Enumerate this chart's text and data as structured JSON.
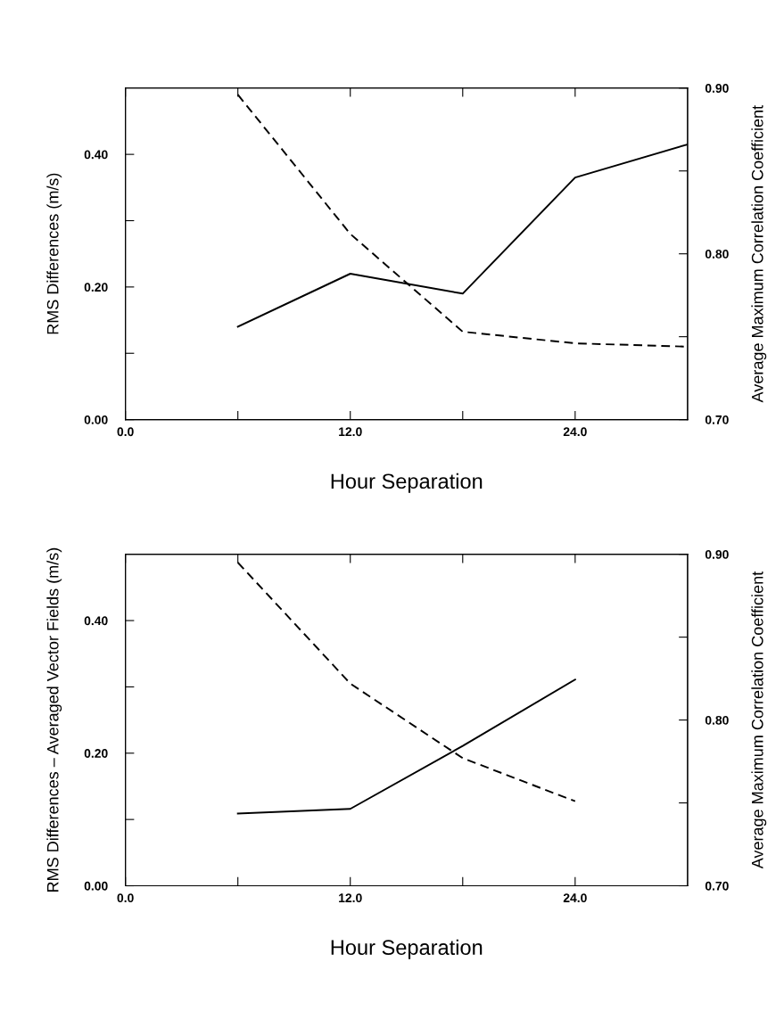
{
  "chart_data": [
    {
      "type": "line",
      "xlabel": "Hour Separation",
      "ylabel": "RMS Differences (m/s)",
      "y2label": "Average Maximum Correlation Coefficient",
      "x": [
        6,
        12,
        18,
        24,
        30
      ],
      "series": [
        {
          "color": "#000000",
          "line_style": "solid",
          "values": [
            0.14,
            0.22,
            0.19,
            0.365,
            0.415
          ]
        },
        {
          "color": "#000000",
          "line_style": "dashed",
          "axis": "y2",
          "values": [
            0.896,
            0.812,
            0.753,
            0.746,
            0.744
          ]
        }
      ],
      "xlim": [
        0,
        30
      ],
      "xticks": [
        {
          "value": 0,
          "label": "0.0"
        },
        {
          "value": 6,
          "label": null
        },
        {
          "value": 12,
          "label": "12.0"
        },
        {
          "value": 18,
          "label": null
        },
        {
          "value": 24,
          "label": "24.0"
        }
      ],
      "ylim": [
        0,
        0.5
      ],
      "yticks": [
        {
          "value": 0,
          "label": "0.00"
        },
        {
          "value": 0.1,
          "label": null
        },
        {
          "value": 0.2,
          "label": "0.20"
        },
        {
          "value": 0.3,
          "label": null
        },
        {
          "value": 0.4,
          "label": "0.40"
        }
      ],
      "y2lim": [
        0.7,
        0.9
      ],
      "y2ticks": [
        {
          "value": 0.7,
          "label": "0.70"
        },
        {
          "value": 0.75,
          "label": null
        },
        {
          "value": 0.8,
          "label": "0.80"
        },
        {
          "value": 0.85,
          "label": null
        },
        {
          "value": 0.9,
          "label": "0.90"
        }
      ],
      "grid": false,
      "legend": false,
      "marker": "none"
    },
    {
      "type": "line",
      "xlabel": "Hour Separation",
      "ylabel": "RMS Differences – Averaged Vector Fields (m/s)",
      "y2label": "Average Maximum Correlation Coefficient",
      "x": [
        6,
        12,
        18,
        24
      ],
      "series": [
        {
          "color": "#000000",
          "line_style": "solid",
          "values": [
            0.109,
            0.116,
            0.211,
            0.311
          ]
        },
        {
          "color": "#000000",
          "line_style": "dashed",
          "axis": "y2",
          "values": [
            0.895,
            0.822,
            0.777,
            0.751
          ]
        }
      ],
      "xlim": [
        0,
        30
      ],
      "xticks": [
        {
          "value": 0,
          "label": "0.0"
        },
        {
          "value": 6,
          "label": null
        },
        {
          "value": 12,
          "label": "12.0"
        },
        {
          "value": 18,
          "label": null
        },
        {
          "value": 24,
          "label": "24.0"
        }
      ],
      "ylim": [
        0,
        0.5
      ],
      "yticks": [
        {
          "value": 0,
          "label": "0.00"
        },
        {
          "value": 0.1,
          "label": null
        },
        {
          "value": 0.2,
          "label": "0.20"
        },
        {
          "value": 0.3,
          "label": null
        },
        {
          "value": 0.4,
          "label": "0.40"
        }
      ],
      "y2lim": [
        0.7,
        0.9
      ],
      "y2ticks": [
        {
          "value": 0.7,
          "label": "0.70"
        },
        {
          "value": 0.75,
          "label": null
        },
        {
          "value": 0.8,
          "label": "0.80"
        },
        {
          "value": 0.85,
          "label": null
        },
        {
          "value": 0.9,
          "label": "0.90"
        }
      ],
      "grid": false,
      "legend": false,
      "marker": "none"
    }
  ]
}
